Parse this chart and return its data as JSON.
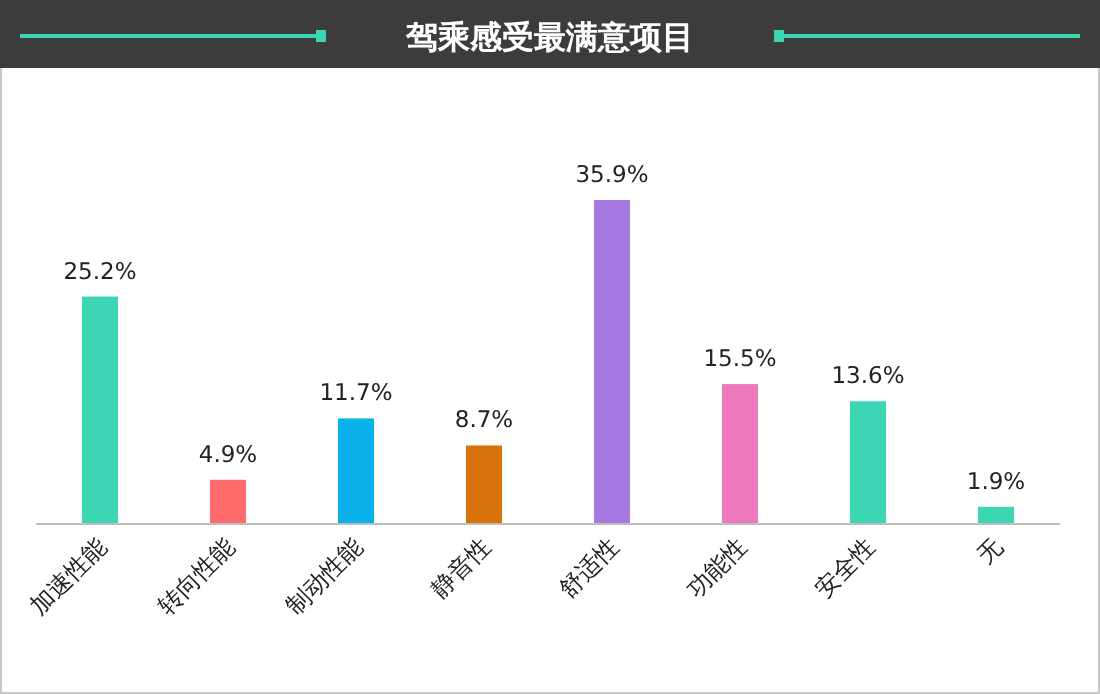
{
  "chart_data": {
    "type": "bar",
    "title": "驾乘感受最满意项目",
    "categories": [
      "加速性能",
      "转向性能",
      "制动性能",
      "静音性",
      "舒适性",
      "功能性",
      "安全性",
      "无"
    ],
    "values": [
      25.2,
      4.9,
      11.7,
      8.7,
      35.9,
      15.5,
      13.6,
      1.9
    ],
    "colors": [
      "#3dd6b5",
      "#ff6b6b",
      "#0ab0ea",
      "#d9720b",
      "#a579e0",
      "#ee78bd",
      "#3dd6b5",
      "#3dd6b5"
    ],
    "value_labels": [
      "25.2%",
      "4.9%",
      "11.7%",
      "8.7%",
      "35.9%",
      "15.5%",
      "13.6%",
      "1.9%"
    ]
  }
}
